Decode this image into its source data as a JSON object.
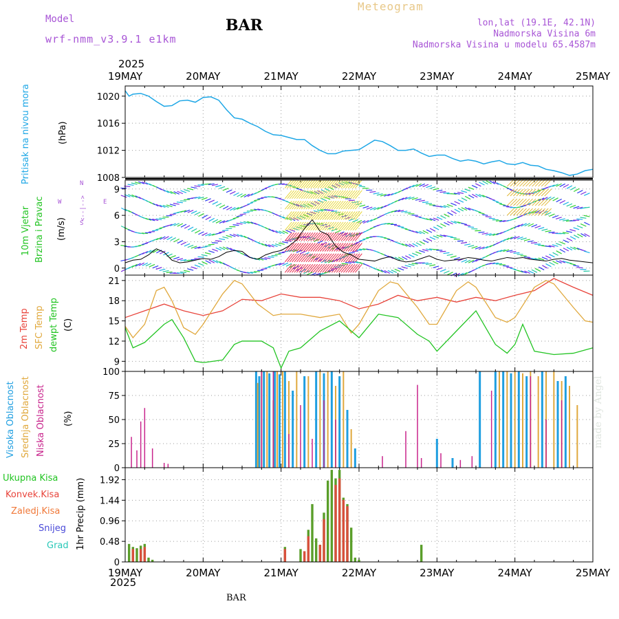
{
  "header": {
    "model_label": "Model",
    "model_name": "wrf-nmm_v3.9.1 e1km",
    "station": "BAR",
    "product": "Meteogram",
    "lonlat": "lon,lat (19.1E, 42.1N)",
    "altitude": "Nadmorska Visina 6m",
    "model_altitude": "Nadmorska Visina u modelu 65.4587m",
    "footer_station": "BAR",
    "credit": "made by Angel"
  },
  "dates": {
    "year": "2025",
    "labels": [
      "19MAY",
      "20MAY",
      "21MAY",
      "22MAY",
      "23MAY",
      "24MAY",
      "25MAY"
    ]
  },
  "colors": {
    "pressure": "#1ea7e6",
    "temp2m": "#e8433a",
    "sfc": "#e0a83c",
    "dewpt": "#22c422",
    "high_cloud": "#1e9ee0",
    "mid_cloud": "#e0a83c",
    "low_cloud": "#c8248c",
    "total_precip": "#5a9e2a",
    "conv_precip": "#d8503c",
    "wind_speed": "#000000"
  },
  "panels": {
    "pressure": {
      "ylabel_main": "Pritisak na nivou mora",
      "unit": "(hPa)",
      "yticks": [
        "1020",
        "1016",
        "1012",
        "1008"
      ]
    },
    "wind": {
      "ylabel_line1": "10m Vjetar",
      "ylabel_line2": "Brzina i Pravac",
      "unit": "(m/s)",
      "compass_n": "N",
      "compass_s": "S",
      "compass_w": "W",
      "compass_e": "E",
      "compass_mid": "<--|-->",
      "yticks": [
        "9",
        "6",
        "3",
        "0"
      ]
    },
    "temperature": {
      "label_2m": "2m Temp",
      "label_sfc": "SFC Temp",
      "label_dew": "dewpt Temp",
      "unit": "(C)",
      "yticks": [
        "21",
        "18",
        "15",
        "12",
        "9"
      ]
    },
    "cloud": {
      "label_high": "Visoka Oblacnost",
      "label_mid": "Srednja Oblacnost",
      "label_low": "Niska Oblacnost",
      "unit": "(%)",
      "yticks": [
        "100",
        "75",
        "50",
        "25",
        "0"
      ]
    },
    "precip": {
      "label_total": "Ukupna Kisa",
      "label_conv": "Konvek.Kisa",
      "label_frozen": "Zaledj.Kisa",
      "label_snow": "Snijeg",
      "label_hail": "Grad",
      "ylabel": "1hr Precip (mm)",
      "yticks": [
        "1.92",
        "1.44",
        "0.96",
        "0.48",
        "0"
      ]
    }
  },
  "chart_data": [
    {
      "type": "line",
      "name": "pressure",
      "x_unit": "days since 19MAY 00Z",
      "ylim": [
        1008,
        1021.5
      ],
      "grid": true,
      "series": [
        {
          "name": "Pritisak na nivou mora",
          "x": [
            0,
            0.05,
            0.1,
            0.2,
            0.3,
            0.4,
            0.5,
            0.6,
            0.7,
            0.8,
            0.9,
            1.0,
            1.1,
            1.2,
            1.3,
            1.4,
            1.5,
            1.6,
            1.7,
            1.8,
            1.9,
            2.0,
            2.1,
            2.2,
            2.3,
            2.4,
            2.5,
            2.6,
            2.7,
            2.8,
            2.9,
            3.0,
            3.1,
            3.2,
            3.3,
            3.4,
            3.5,
            3.6,
            3.7,
            3.8,
            3.9,
            4.0,
            4.1,
            4.2,
            4.3,
            4.4,
            4.5,
            4.6,
            4.7,
            4.8,
            4.9,
            5.0,
            5.1,
            5.2,
            5.3,
            5.4,
            5.5,
            5.6,
            5.7,
            5.8,
            5.9,
            6.0
          ],
          "values": [
            1020.8,
            1020.0,
            1020.3,
            1020.4,
            1020.0,
            1019.2,
            1018.5,
            1018.6,
            1019.3,
            1019.4,
            1019.1,
            1019.8,
            1019.9,
            1019.4,
            1018.0,
            1016.8,
            1016.6,
            1016.0,
            1015.5,
            1014.8,
            1014.3,
            1014.2,
            1013.9,
            1013.6,
            1013.6,
            1012.7,
            1012.0,
            1011.5,
            1011.5,
            1011.9,
            1012.0,
            1012.1,
            1012.8,
            1013.5,
            1013.3,
            1012.7,
            1012.0,
            1012.0,
            1012.2,
            1011.6,
            1011.1,
            1011.3,
            1011.3,
            1010.8,
            1010.4,
            1010.6,
            1010.4,
            1010.0,
            1010.3,
            1010.5,
            1010.0,
            1009.9,
            1010.2,
            1009.8,
            1009.7,
            1009.2,
            1009.0,
            1008.7,
            1008.3,
            1008.5,
            1009.0,
            1009.2
          ]
        }
      ]
    },
    {
      "type": "line",
      "name": "wind",
      "x_unit": "days since 19MAY 00Z",
      "ylim": [
        -0.8,
        10
      ],
      "grid": true,
      "series": [
        {
          "name": "wind speed",
          "x": [
            0,
            0.1,
            0.2,
            0.3,
            0.4,
            0.5,
            0.6,
            0.7,
            0.8,
            0.9,
            1.0,
            1.1,
            1.2,
            1.3,
            1.4,
            1.5,
            1.6,
            1.7,
            1.8,
            1.9,
            2.0,
            2.1,
            2.2,
            2.3,
            2.4,
            2.5,
            2.6,
            2.7,
            2.8,
            2.9,
            3.0,
            3.1,
            3.2,
            3.3,
            3.4,
            3.5,
            3.6,
            3.7,
            3.8,
            3.9,
            4.0,
            4.1,
            4.2,
            4.3,
            4.4,
            4.5,
            4.6,
            4.7,
            4.8,
            4.9,
            5.0,
            5.1,
            5.2,
            5.3,
            5.4,
            5.5,
            5.6,
            5.7,
            5.8,
            5.9,
            6.0
          ],
          "values": [
            0.6,
            0.9,
            1.0,
            1.5,
            2.2,
            1.8,
            0.9,
            0.6,
            0.7,
            0.9,
            1.1,
            1.0,
            1.3,
            1.8,
            2.0,
            1.9,
            1.2,
            1.0,
            1.5,
            1.8,
            2.0,
            2.5,
            3.2,
            4.5,
            5.5,
            4.2,
            3.8,
            2.5,
            1.8,
            1.5,
            1.0,
            0.9,
            0.8,
            1.1,
            1.3,
            0.9,
            0.7,
            0.8,
            1.1,
            1.4,
            1.0,
            0.8,
            0.9,
            1.0,
            1.2,
            1.1,
            0.9,
            0.8,
            1.0,
            1.2,
            1.1,
            1.2,
            1.0,
            0.9,
            0.8,
            1.0,
            1.1,
            0.9,
            0.8,
            0.7,
            0.6
          ]
        }
      ]
    },
    {
      "type": "line",
      "name": "temperature",
      "x_unit": "days since 19MAY 00Z",
      "ylim": [
        7.5,
        21.8
      ],
      "grid": true,
      "series": [
        {
          "name": "2m Temp",
          "x": [
            0,
            0.25,
            0.5,
            0.75,
            1.0,
            1.25,
            1.5,
            1.75,
            2.0,
            2.25,
            2.5,
            2.75,
            3.0,
            3.25,
            3.5,
            3.75,
            4.0,
            4.25,
            4.5,
            4.75,
            5.0,
            5.25,
            5.5,
            5.75,
            6.0
          ],
          "values": [
            15.5,
            16.5,
            17.5,
            16.5,
            15.8,
            16.5,
            18.2,
            18.0,
            19.0,
            18.5,
            18.5,
            18.0,
            16.8,
            17.5,
            18.8,
            18.0,
            18.5,
            17.8,
            18.5,
            18.0,
            18.8,
            19.5,
            21.3,
            20.0,
            18.8
          ]
        },
        {
          "name": "SFC Temp",
          "x": [
            0,
            0.1,
            0.25,
            0.4,
            0.5,
            0.6,
            0.75,
            0.9,
            1.0,
            1.25,
            1.4,
            1.5,
            1.7,
            1.9,
            2.0,
            2.25,
            2.5,
            2.75,
            2.9,
            3.0,
            3.25,
            3.4,
            3.5,
            3.75,
            3.9,
            4.0,
            4.25,
            4.4,
            4.5,
            4.75,
            4.9,
            5.0,
            5.25,
            5.4,
            5.5,
            5.75,
            5.9,
            6.0
          ],
          "values": [
            14.2,
            12.5,
            14.5,
            19.5,
            20.0,
            18.0,
            14.0,
            13.0,
            14.5,
            19.0,
            21.0,
            20.5,
            17.5,
            15.8,
            16.0,
            16.0,
            15.5,
            16.0,
            13.2,
            14.5,
            19.5,
            20.8,
            20.5,
            17.0,
            14.5,
            14.5,
            19.5,
            20.8,
            20.0,
            15.5,
            14.8,
            15.5,
            20.0,
            21.0,
            20.5,
            17.0,
            15.0,
            14.8
          ]
        },
        {
          "name": "dewpt Temp",
          "x": [
            0,
            0.1,
            0.25,
            0.5,
            0.6,
            0.75,
            0.9,
            1.0,
            1.25,
            1.4,
            1.5,
            1.75,
            1.9,
            2.0,
            2.1,
            2.25,
            2.5,
            2.75,
            2.9,
            3.0,
            3.25,
            3.5,
            3.75,
            3.9,
            4.0,
            4.25,
            4.5,
            4.75,
            4.9,
            5.0,
            5.1,
            5.25,
            5.5,
            5.75,
            6.0
          ],
          "values": [
            14.0,
            11.0,
            11.8,
            14.5,
            15.2,
            12.5,
            9.0,
            8.8,
            9.2,
            11.5,
            12.0,
            12.0,
            11.0,
            8.0,
            10.5,
            11.0,
            13.5,
            15.0,
            13.5,
            12.5,
            16.0,
            15.5,
            13.0,
            12.0,
            10.5,
            13.5,
            16.5,
            11.5,
            10.2,
            11.5,
            14.5,
            10.5,
            10.0,
            10.2,
            11.0
          ]
        }
      ]
    },
    {
      "type": "bar",
      "name": "cloud",
      "x_unit": "days since 19MAY 00Z",
      "ylim": [
        0,
        100
      ],
      "grid": true,
      "series": [
        {
          "name": "Visoka Oblacnost",
          "x": [
            1.68,
            1.72,
            1.78,
            1.85,
            1.92,
            1.98,
            2.05,
            2.15,
            2.3,
            2.45,
            2.55,
            2.65,
            2.75,
            2.85,
            2.95,
            4.0,
            4.2,
            4.55,
            4.75,
            4.85,
            4.95,
            5.05,
            5.15,
            5.35,
            5.55,
            5.65
          ],
          "values": [
            100,
            95,
            100,
            98,
            100,
            97,
            100,
            80,
            95,
            100,
            98,
            100,
            95,
            60,
            20,
            30,
            10,
            100,
            100,
            100,
            98,
            100,
            95,
            100,
            90,
            95
          ]
        },
        {
          "name": "Srednja Oblacnost",
          "x": [
            1.7,
            1.75,
            1.82,
            1.9,
            1.95,
            2.02,
            2.1,
            2.2,
            2.35,
            2.5,
            2.6,
            2.7,
            2.8,
            2.9,
            4.8,
            4.9,
            5.0,
            5.1,
            5.2,
            5.3,
            5.4,
            5.5,
            5.6,
            5.7,
            5.8
          ],
          "values": [
            88,
            100,
            100,
            70,
            100,
            100,
            90,
            100,
            95,
            100,
            100,
            85,
            100,
            40,
            100,
            100,
            100,
            98,
            100,
            95,
            100,
            100,
            90,
            85,
            65
          ]
        },
        {
          "name": "Niska Oblacnost",
          "x": [
            0.08,
            0.15,
            0.2,
            0.25,
            0.35,
            0.5,
            0.55,
            1.75,
            1.9,
            2.1,
            2.25,
            2.4,
            2.55,
            2.7,
            3.3,
            3.6,
            3.75,
            3.8,
            4.05,
            4.3,
            4.45,
            4.7,
            5.2,
            5.4,
            5.6
          ],
          "values": [
            32,
            18,
            48,
            62,
            20,
            5,
            4,
            100,
            100,
            35,
            65,
            30,
            70,
            50,
            12,
            38,
            86,
            10,
            15,
            8,
            12,
            80,
            95,
            50,
            70
          ]
        }
      ]
    },
    {
      "type": "bar",
      "name": "precip",
      "x_unit": "days since 19MAY 00Z",
      "ylim": [
        0,
        2.2
      ],
      "grid": true,
      "series": [
        {
          "name": "Ukupna Kisa",
          "x": [
            0.05,
            0.1,
            0.15,
            0.2,
            0.25,
            0.3,
            0.35,
            2.05,
            2.25,
            2.35,
            2.4,
            2.45,
            2.5,
            2.55,
            2.6,
            2.65,
            2.7,
            2.75,
            2.8,
            2.85,
            2.9,
            2.95,
            3.0,
            3.8
          ],
          "values": [
            0.42,
            0.35,
            0.32,
            0.38,
            0.42,
            0.1,
            0.05,
            0.35,
            0.3,
            0.75,
            1.35,
            0.55,
            0.4,
            1.15,
            1.9,
            2.15,
            1.95,
            2.15,
            1.5,
            1.35,
            0.8,
            0.1,
            0.05,
            0.4
          ]
        },
        {
          "name": "Konvek.Kisa",
          "x": [
            0.1,
            0.2,
            0.25,
            2.05,
            2.3,
            2.35,
            2.5,
            2.55,
            2.7,
            2.75,
            2.8,
            2.85
          ],
          "values": [
            0.3,
            0.3,
            0.35,
            0.3,
            0.25,
            0.6,
            0.4,
            1.0,
            1.8,
            1.95,
            1.45,
            1.3
          ]
        }
      ]
    }
  ]
}
